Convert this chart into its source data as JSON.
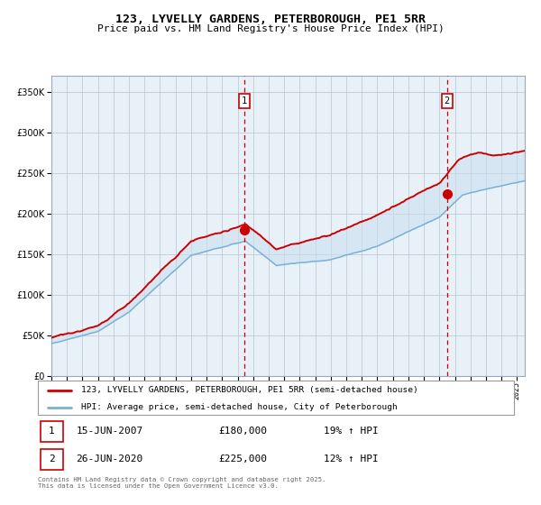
{
  "title1": "123, LYVELLY GARDENS, PETERBOROUGH, PE1 5RR",
  "title2": "Price paid vs. HM Land Registry's House Price Index (HPI)",
  "legend_line1": "123, LYVELLY GARDENS, PETERBOROUGH, PE1 5RR (semi-detached house)",
  "legend_line2": "HPI: Average price, semi-detached house, City of Peterborough",
  "annotation1_label": "1",
  "annotation1_date": "15-JUN-2007",
  "annotation1_price": "£180,000",
  "annotation1_hpi": "19% ↑ HPI",
  "annotation1_year": 2007.45,
  "annotation1_value": 180000,
  "annotation2_label": "2",
  "annotation2_date": "26-JUN-2020",
  "annotation2_price": "£225,000",
  "annotation2_hpi": "12% ↑ HPI",
  "annotation2_year": 2020.49,
  "annotation2_value": 225000,
  "footer": "Contains HM Land Registry data © Crown copyright and database right 2025.\nThis data is licensed under the Open Government Licence v3.0.",
  "red_color": "#cc0000",
  "blue_color": "#7ab0d4",
  "fill_color": "#c8dff0",
  "bg_color": "#e8f0f8",
  "grid_color": "#c0ccd8",
  "ylim": [
    0,
    370000
  ],
  "xlim_start": 1995,
  "xlim_end": 2025.5
}
